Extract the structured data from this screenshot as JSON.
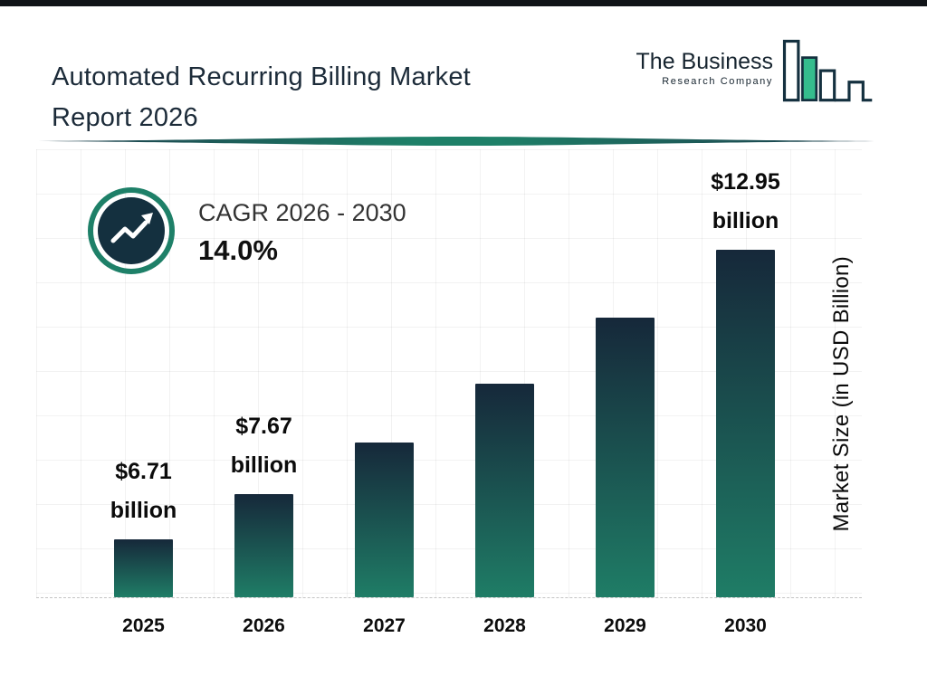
{
  "header": {
    "title_line1": "Automated Recurring Billing Market",
    "title_line2": "Report 2026"
  },
  "logo": {
    "line1": "The Business",
    "line2": "Research Company"
  },
  "cagr": {
    "label": "CAGR 2026 - 2030",
    "value": "14.0%"
  },
  "chart_data": {
    "type": "bar",
    "title": "Automated Recurring Billing Market Report 2026",
    "categories": [
      "2025",
      "2026",
      "2027",
      "2028",
      "2029",
      "2030"
    ],
    "values": [
      6.71,
      7.67,
      8.74,
      9.97,
      11.36,
      12.95
    ],
    "value_labels": [
      "$6.71 billion",
      "$7.67 billion",
      null,
      null,
      null,
      "$12.95 billion"
    ],
    "xlabel": "",
    "ylabel": "Market Size (in USD Billion)",
    "ylim": [
      5.5,
      14.6
    ],
    "grid": true,
    "legend": "none",
    "bar_gradient": [
      "#16283a",
      "#1f7d66"
    ],
    "accent_teal": "#1e8068",
    "accent_navy": "#14303f"
  }
}
